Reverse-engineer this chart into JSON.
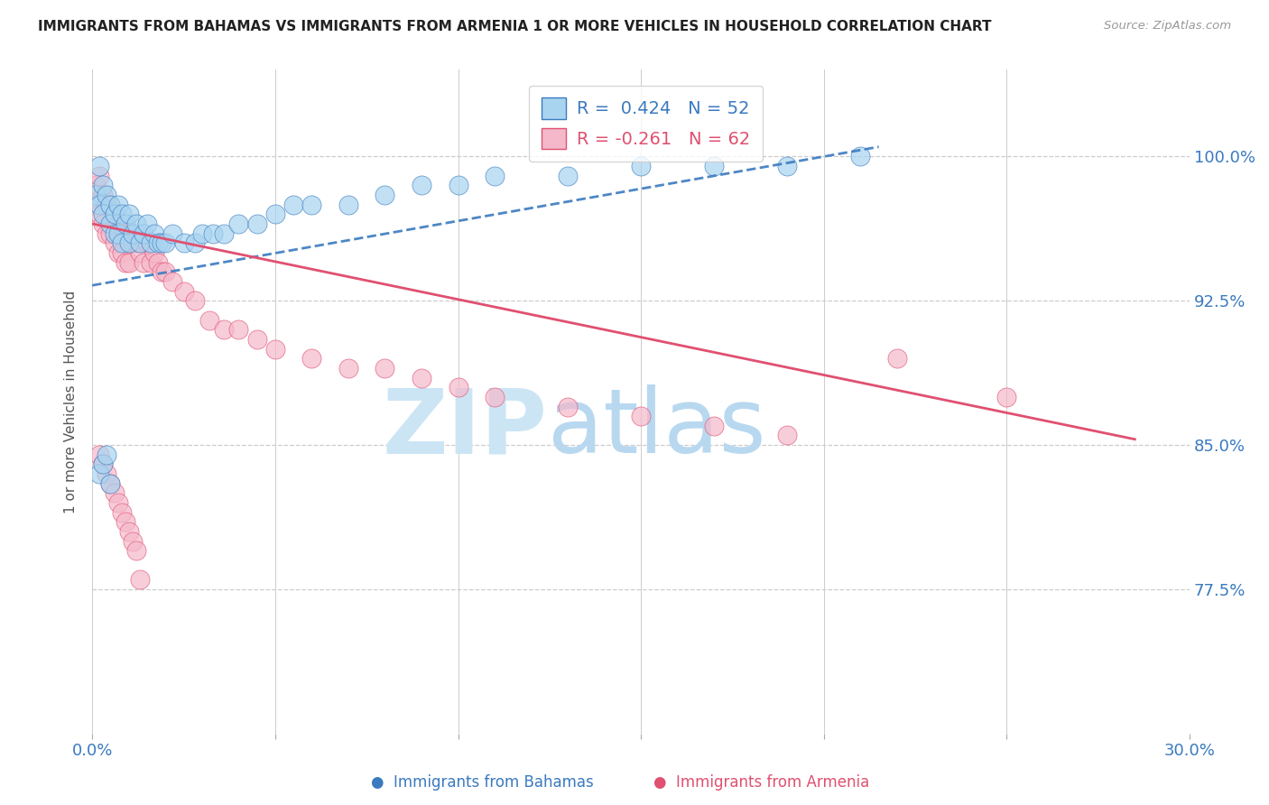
{
  "title": "IMMIGRANTS FROM BAHAMAS VS IMMIGRANTS FROM ARMENIA 1 OR MORE VEHICLES IN HOUSEHOLD CORRELATION CHART",
  "source": "Source: ZipAtlas.com",
  "ylabel": "1 or more Vehicles in Household",
  "ytick_labels": [
    "100.0%",
    "92.5%",
    "85.0%",
    "77.5%"
  ],
  "ytick_values": [
    1.0,
    0.925,
    0.85,
    0.775
  ],
  "xmin": 0.0,
  "xmax": 0.3,
  "ymin": 0.7,
  "ymax": 1.045,
  "legend_r_bahamas": "0.424",
  "legend_n_bahamas": 52,
  "legend_r_armenia": "-0.261",
  "legend_n_armenia": 62,
  "color_bahamas": "#a8d4f0",
  "color_armenia": "#f5b8cb",
  "trendline_color_bahamas": "#3a7abf",
  "trendline_color_armenia": "#e05070",
  "bahamas_x": [
    0.001,
    0.002,
    0.002,
    0.003,
    0.003,
    0.004,
    0.005,
    0.005,
    0.006,
    0.006,
    0.007,
    0.007,
    0.008,
    0.008,
    0.009,
    0.01,
    0.01,
    0.011,
    0.012,
    0.013,
    0.014,
    0.015,
    0.016,
    0.017,
    0.018,
    0.019,
    0.02,
    0.022,
    0.025,
    0.028,
    0.03,
    0.033,
    0.036,
    0.04,
    0.045,
    0.05,
    0.055,
    0.06,
    0.07,
    0.08,
    0.09,
    0.1,
    0.11,
    0.13,
    0.15,
    0.17,
    0.19,
    0.21,
    0.002,
    0.003,
    0.004,
    0.005
  ],
  "bahamas_y": [
    0.98,
    0.995,
    0.975,
    0.985,
    0.97,
    0.98,
    0.975,
    0.965,
    0.97,
    0.96,
    0.975,
    0.96,
    0.97,
    0.955,
    0.965,
    0.97,
    0.955,
    0.96,
    0.965,
    0.955,
    0.96,
    0.965,
    0.955,
    0.96,
    0.955,
    0.955,
    0.955,
    0.96,
    0.955,
    0.955,
    0.96,
    0.96,
    0.96,
    0.965,
    0.965,
    0.97,
    0.975,
    0.975,
    0.975,
    0.98,
    0.985,
    0.985,
    0.99,
    0.99,
    0.995,
    0.995,
    0.995,
    1.0,
    0.835,
    0.84,
    0.845,
    0.83
  ],
  "armenia_x": [
    0.001,
    0.001,
    0.002,
    0.002,
    0.003,
    0.003,
    0.004,
    0.004,
    0.005,
    0.005,
    0.006,
    0.006,
    0.007,
    0.007,
    0.008,
    0.008,
    0.009,
    0.009,
    0.01,
    0.01,
    0.011,
    0.012,
    0.013,
    0.014,
    0.015,
    0.016,
    0.017,
    0.018,
    0.019,
    0.02,
    0.022,
    0.025,
    0.028,
    0.032,
    0.036,
    0.04,
    0.045,
    0.05,
    0.06,
    0.07,
    0.08,
    0.09,
    0.1,
    0.11,
    0.13,
    0.15,
    0.17,
    0.19,
    0.22,
    0.25,
    0.002,
    0.003,
    0.004,
    0.005,
    0.006,
    0.007,
    0.008,
    0.009,
    0.01,
    0.011,
    0.012,
    0.013
  ],
  "armenia_y": [
    0.985,
    0.975,
    0.99,
    0.97,
    0.98,
    0.965,
    0.975,
    0.96,
    0.975,
    0.96,
    0.97,
    0.955,
    0.965,
    0.95,
    0.965,
    0.95,
    0.96,
    0.945,
    0.96,
    0.945,
    0.955,
    0.955,
    0.95,
    0.945,
    0.955,
    0.945,
    0.95,
    0.945,
    0.94,
    0.94,
    0.935,
    0.93,
    0.925,
    0.915,
    0.91,
    0.91,
    0.905,
    0.9,
    0.895,
    0.89,
    0.89,
    0.885,
    0.88,
    0.875,
    0.87,
    0.865,
    0.86,
    0.855,
    0.895,
    0.875,
    0.845,
    0.84,
    0.835,
    0.83,
    0.825,
    0.82,
    0.815,
    0.81,
    0.805,
    0.8,
    0.795,
    0.78
  ]
}
